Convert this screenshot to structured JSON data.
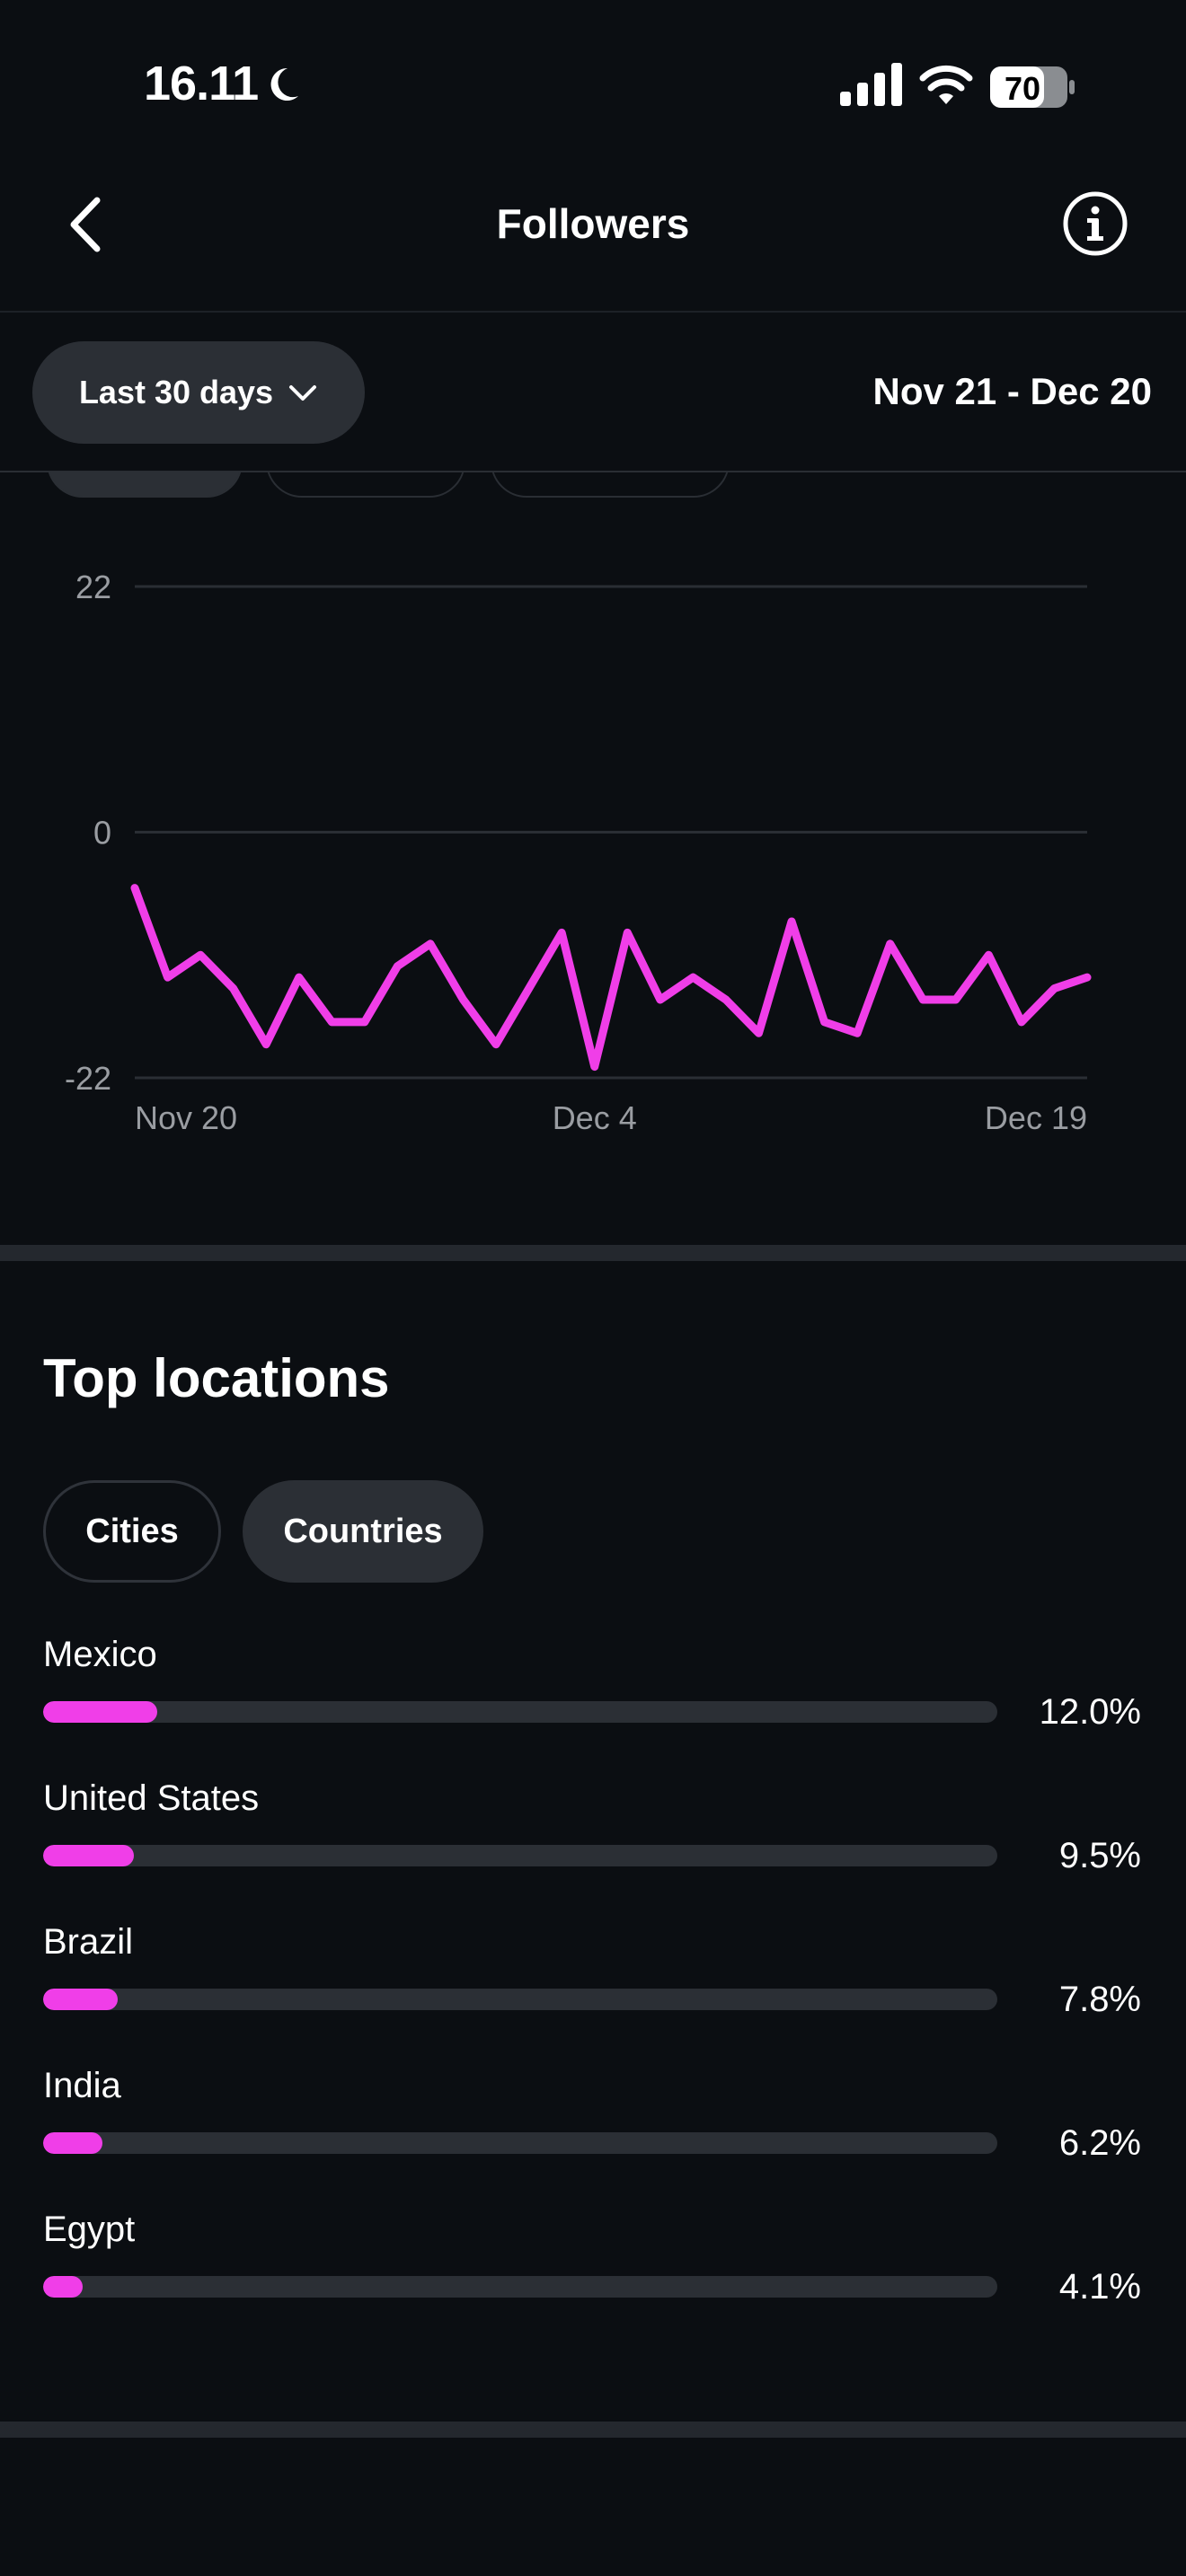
{
  "status_bar": {
    "time": "16.11",
    "battery": "70"
  },
  "header": {
    "title": "Followers"
  },
  "filter": {
    "range_label": "Last 30 days",
    "date_range": "Nov 21 - Dec 20"
  },
  "chart_data": {
    "type": "line",
    "y_ticks": [
      "22",
      "0",
      "-22"
    ],
    "ylim": [
      -22,
      22
    ],
    "x_tick_labels": [
      "Nov 20",
      "Dec 4",
      "Dec 19"
    ],
    "x": [
      "Nov 20",
      "Nov 21",
      "Nov 22",
      "Nov 23",
      "Nov 24",
      "Nov 25",
      "Nov 26",
      "Nov 27",
      "Nov 28",
      "Nov 29",
      "Nov 30",
      "Dec 1",
      "Dec 2",
      "Dec 3",
      "Dec 4",
      "Dec 5",
      "Dec 6",
      "Dec 7",
      "Dec 8",
      "Dec 9",
      "Dec 10",
      "Dec 11",
      "Dec 12",
      "Dec 13",
      "Dec 14",
      "Dec 15",
      "Dec 16",
      "Dec 17",
      "Dec 18",
      "Dec 19"
    ],
    "values": [
      -5,
      -13,
      -11,
      -14,
      -19,
      -13,
      -17,
      -17,
      -12,
      -10,
      -15,
      -19,
      -14,
      -9,
      -21,
      -9,
      -15,
      -13,
      -15,
      -18,
      -8,
      -17,
      -18,
      -10,
      -15,
      -15,
      -11,
      -17,
      -14,
      -13
    ],
    "color": "#f03ee8",
    "grid": true
  },
  "locations": {
    "title": "Top locations",
    "tabs": [
      {
        "label": "Cities",
        "active": false
      },
      {
        "label": "Countries",
        "active": true
      }
    ],
    "items": [
      {
        "name": "Mexico",
        "value": "12.0%",
        "pct": 12.0
      },
      {
        "name": "United States",
        "value": "9.5%",
        "pct": 9.5
      },
      {
        "name": "Brazil",
        "value": "7.8%",
        "pct": 7.8
      },
      {
        "name": "India",
        "value": "6.2%",
        "pct": 6.2
      },
      {
        "name": "Egypt",
        "value": "4.1%",
        "pct": 4.1
      }
    ]
  },
  "colors": {
    "accent": "#f03ee8",
    "background": "#0b0e12",
    "surface": "#2b2f35"
  },
  "icons": {
    "back": "chevron-left-icon",
    "info": "info-icon",
    "dropdown": "chevron-down-icon"
  }
}
